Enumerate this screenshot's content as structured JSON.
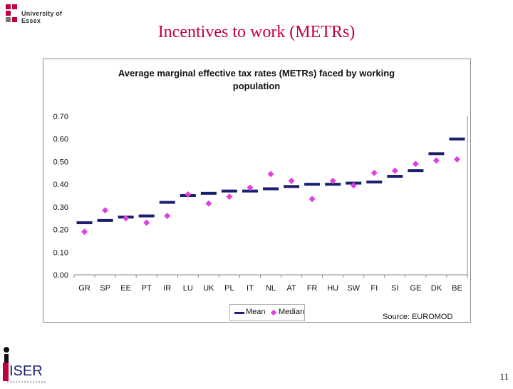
{
  "header": {
    "logo_text": "University of Essex",
    "slide_title": "Incentives to work (METRs)"
  },
  "footer": {
    "page_number": "11",
    "iser_logo_text": "ISER"
  },
  "chart_data": {
    "type": "scatter",
    "title": "Average marginal effective tax rates (METRs) faced by working population",
    "title_lines": [
      "Average marginal effective tax rates (METRs) faced by working",
      "population"
    ],
    "xlabel": "",
    "ylabel": "",
    "ylim": [
      0,
      0.7
    ],
    "yticks": [
      "0.00",
      "0.10",
      "0.20",
      "0.30",
      "0.40",
      "0.50",
      "0.60",
      "0.70"
    ],
    "grid": false,
    "legend_placement": "bottom-center",
    "categories": [
      "GR",
      "SP",
      "EE",
      "PT",
      "IR",
      "LU",
      "UK",
      "PL",
      "IT",
      "NL",
      "AT",
      "FR",
      "HU",
      "SW",
      "FI",
      "SI",
      "GE",
      "DK",
      "BE"
    ],
    "series": [
      {
        "name": "Mean",
        "marker": "dash",
        "color": "#1a1f6e",
        "values": [
          0.23,
          0.24,
          0.255,
          0.26,
          0.32,
          0.35,
          0.36,
          0.37,
          0.37,
          0.38,
          0.39,
          0.4,
          0.4,
          0.405,
          0.41,
          0.435,
          0.46,
          0.535,
          0.6
        ]
      },
      {
        "name": "Median",
        "marker": "diamond",
        "color": "#e040e0",
        "values": [
          0.19,
          0.285,
          0.25,
          0.23,
          0.26,
          0.355,
          0.315,
          0.345,
          0.385,
          0.445,
          0.415,
          0.335,
          0.415,
          0.395,
          0.45,
          0.46,
          0.49,
          0.505,
          0.51
        ]
      }
    ],
    "annotation": "Source: EUROMOD"
  }
}
